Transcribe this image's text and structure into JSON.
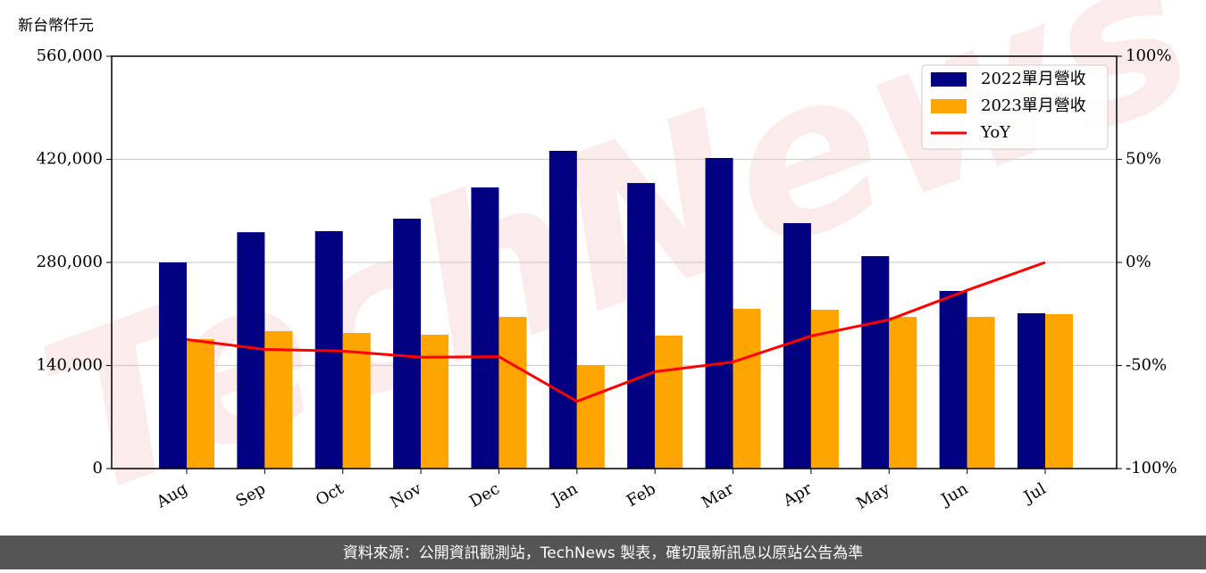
{
  "chart_data": {
    "type": "bar-line",
    "ylabel": "新台幣仟元",
    "watermark": "TechNews",
    "source": "資料來源：公開資訊觀測站，TechNews 製表，確切最新訊息以原站公告為準",
    "categories": [
      "Aug",
      "Sep",
      "Oct",
      "Nov",
      "Dec",
      "Jan",
      "Feb",
      "Mar",
      "Apr",
      "May",
      "Jun",
      "Jul"
    ],
    "series": [
      {
        "name": "2022單月營收",
        "type": "bar",
        "color": "#000080",
        "values": [
          280000,
          321000,
          322400,
          339400,
          381800,
          431500,
          387800,
          421800,
          333300,
          288500,
          241200,
          210900
        ]
      },
      {
        "name": "2023單月營收",
        "type": "bar",
        "color": "#ffa500",
        "values": [
          175700,
          186600,
          184200,
          181800,
          206000,
          140600,
          180600,
          217000,
          215700,
          206000,
          206000,
          209700
        ]
      },
      {
        "name": "YoY",
        "type": "line",
        "axis": "y2",
        "color": "#ff0000",
        "values": [
          -37.4,
          -42.2,
          -43,
          -46,
          -45.7,
          -67.4,
          -53,
          -48.3,
          -35.7,
          -27.8,
          -13.5,
          0
        ]
      }
    ],
    "ylim": [
      0,
      560000
    ],
    "yticks": [
      0,
      {
        "value": 140000,
        "label": "140,000"
      },
      {
        "value": 280000,
        "label": "280,000"
      },
      {
        "value": 420000,
        "label": "420,000"
      },
      {
        "value": 560000,
        "label": "560,000"
      }
    ],
    "y2lim": [
      -100,
      100
    ],
    "y2ticks": [
      {
        "value": -100,
        "label": "-100%"
      },
      {
        "value": -50,
        "label": "-50%"
      },
      {
        "value": 0,
        "label": "0%"
      },
      {
        "value": 50,
        "label": "50%"
      },
      {
        "value": 100,
        "label": "100%"
      }
    ],
    "grid": true,
    "legend": "upper right"
  }
}
